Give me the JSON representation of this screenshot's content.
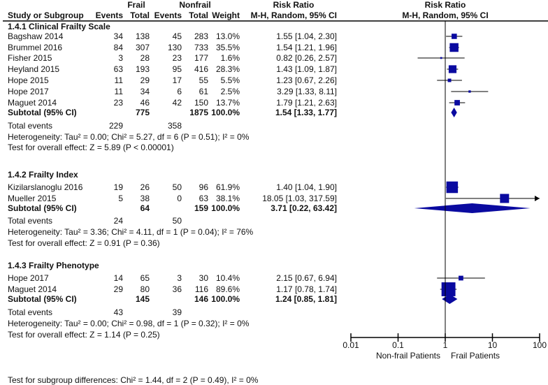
{
  "chart_data": {
    "type": "forest",
    "headers": {
      "study": "Study or Subgroup",
      "group1": "Frail",
      "group2": "Nonfrail",
      "events": "Events",
      "total": "Total",
      "weight": "Weight",
      "rr_title": "Risk Ratio",
      "rr_method": "M-H, Random, 95% CI",
      "plot_title": "Risk Ratio",
      "plot_method": "M-H, Random, 95% CI"
    },
    "subgroups": [
      {
        "title": "1.4.1 Clinical Frailty Scale",
        "studies": [
          {
            "name": "Bagshaw 2014",
            "e1": "34",
            "n1": "138",
            "e2": "45",
            "n2": "283",
            "weight": "13.0%",
            "ci_text": "1.55 [1.04, 2.30]",
            "rr": 1.55,
            "lo": 1.04,
            "hi": 2.3,
            "w": 13.0
          },
          {
            "name": "Brummel 2016",
            "e1": "84",
            "n1": "307",
            "e2": "130",
            "n2": "733",
            "weight": "35.5%",
            "ci_text": "1.54 [1.21, 1.96]",
            "rr": 1.54,
            "lo": 1.21,
            "hi": 1.96,
            "w": 35.5
          },
          {
            "name": "Fisher 2015",
            "e1": "3",
            "n1": "28",
            "e2": "23",
            "n2": "177",
            "weight": "1.6%",
            "ci_text": "0.82 [0.26, 2.57]",
            "rr": 0.82,
            "lo": 0.26,
            "hi": 2.57,
            "w": 1.6
          },
          {
            "name": "Heyland 2015",
            "e1": "63",
            "n1": "193",
            "e2": "95",
            "n2": "416",
            "weight": "28.3%",
            "ci_text": "1.43 [1.09, 1.87]",
            "rr": 1.43,
            "lo": 1.09,
            "hi": 1.87,
            "w": 28.3
          },
          {
            "name": "Hope 2015",
            "e1": "11",
            "n1": "29",
            "e2": "17",
            "n2": "55",
            "weight": "5.5%",
            "ci_text": "1.23 [0.67, 2.26]",
            "rr": 1.23,
            "lo": 0.67,
            "hi": 2.26,
            "w": 5.5
          },
          {
            "name": "Hope 2017",
            "e1": "11",
            "n1": "34",
            "e2": "6",
            "n2": "61",
            "weight": "2.5%",
            "ci_text": "3.29 [1.33, 8.11]",
            "rr": 3.29,
            "lo": 1.33,
            "hi": 8.11,
            "w": 2.5
          },
          {
            "name": "Maguet 2014",
            "e1": "23",
            "n1": "46",
            "e2": "42",
            "n2": "150",
            "weight": "13.7%",
            "ci_text": "1.79 [1.21, 2.63]",
            "rr": 1.79,
            "lo": 1.21,
            "hi": 2.63,
            "w": 13.7
          }
        ],
        "subtotal": {
          "label": "Subtotal (95% CI)",
          "n1": "775",
          "n2": "1875",
          "weight": "100.0%",
          "ci_text": "1.54 [1.33, 1.77]",
          "rr": 1.54,
          "lo": 1.33,
          "hi": 1.77
        },
        "total_events": {
          "label": "Total events",
          "e1": "229",
          "e2": "358"
        },
        "heterogeneity": "Heterogeneity: Tau² = 0.00; Chi² = 5.27, df = 6 (P = 0.51); I² = 0%",
        "overall": "Test for overall effect: Z = 5.89 (P < 0.00001)"
      },
      {
        "title": "1.4.2 Frailty Index",
        "studies": [
          {
            "name": "Kizilarslanoglu 2016",
            "e1": "19",
            "n1": "26",
            "e2": "50",
            "n2": "96",
            "weight": "61.9%",
            "ci_text": "1.40 [1.04, 1.90]",
            "rr": 1.4,
            "lo": 1.04,
            "hi": 1.9,
            "w": 61.9
          },
          {
            "name": "Mueller 2015",
            "e1": "5",
            "n1": "38",
            "e2": "0",
            "n2": "63",
            "weight": "38.1%",
            "ci_text": "18.05 [1.03, 317.59]",
            "rr": 18.05,
            "lo": 1.03,
            "hi": 317.59,
            "w": 38.1
          }
        ],
        "subtotal": {
          "label": "Subtotal (95% CI)",
          "n1": "64",
          "n2": "159",
          "weight": "100.0%",
          "ci_text": "3.71 [0.22, 63.42]",
          "rr": 3.71,
          "lo": 0.22,
          "hi": 63.42
        },
        "total_events": {
          "label": "Total events",
          "e1": "24",
          "e2": "50"
        },
        "heterogeneity": "Heterogeneity: Tau² = 3.36; Chi² = 4.11, df = 1 (P = 0.04); I² = 76%",
        "overall": "Test for overall effect: Z = 0.91 (P = 0.36)"
      },
      {
        "title": "1.4.3 Frailty Phenotype",
        "studies": [
          {
            "name": "Hope 2017",
            "e1": "14",
            "n1": "65",
            "e2": "3",
            "n2": "30",
            "weight": "10.4%",
            "ci_text": "2.15 [0.67, 6.94]",
            "rr": 2.15,
            "lo": 0.67,
            "hi": 6.94,
            "w": 10.4
          },
          {
            "name": "Maguet 2014",
            "e1": "29",
            "n1": "80",
            "e2": "36",
            "n2": "116",
            "weight": "89.6%",
            "ci_text": "1.17 [0.78, 1.74]",
            "rr": 1.17,
            "lo": 0.78,
            "hi": 1.74,
            "w": 89.6
          }
        ],
        "subtotal": {
          "label": "Subtotal (95% CI)",
          "n1": "145",
          "n2": "146",
          "weight": "100.0%",
          "ci_text": "1.24 [0.85, 1.81]",
          "rr": 1.24,
          "lo": 0.85,
          "hi": 1.81
        },
        "total_events": {
          "label": "Total events",
          "e1": "43",
          "e2": "39"
        },
        "heterogeneity": "Heterogeneity: Tau² = 0.00; Chi² = 0.98, df = 1 (P = 0.32); I² = 0%",
        "overall": "Test for overall effect: Z = 1.14 (P = 0.25)"
      }
    ],
    "subgroup_test": "Test for subgroup differences: Chi² = 1.44, df = 2 (P = 0.49), I² = 0%",
    "axis": {
      "scale": "log",
      "range": [
        0.01,
        100
      ],
      "ticks": [
        0.01,
        0.1,
        1,
        10,
        100
      ],
      "tick_labels": [
        "0.01",
        "0.1",
        "1",
        "10",
        "100"
      ],
      "left_label": "Non-frail Patients",
      "right_label": "Frail Patients"
    },
    "colors": {
      "marker": "#0a0aa0",
      "line": "#000000"
    }
  }
}
